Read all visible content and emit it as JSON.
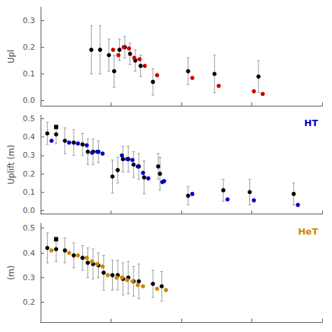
{
  "chart_data": [
    {
      "type": "scatter",
      "ylabel": "Upl",
      "xlim": [
        0,
        16
      ],
      "xticks": [
        0,
        4,
        8,
        12,
        16
      ],
      "ylim": [
        -0.02,
        0.35
      ],
      "yticks": [
        {
          "value": 0,
          "label": "0.0"
        },
        0.1,
        0.2,
        0.3
      ],
      "grid": false,
      "tick_labels": "y",
      "series": [
        {
          "type": "scatter",
          "marker": "circle",
          "color": "black",
          "x": [
            3.0,
            3.5,
            4.0,
            4.3,
            4.6,
            4.9,
            5.2,
            5.5,
            5.8,
            6.5,
            8.5,
            10.0,
            12.5
          ],
          "values": [
            0.19,
            0.19,
            0.17,
            0.11,
            0.19,
            0.2,
            0.175,
            0.15,
            0.13,
            0.07,
            0.11,
            0.1,
            0.09
          ],
          "errors": [
            0.09,
            0.09,
            0.06,
            0.06,
            0.04,
            0.04,
            0.04,
            0.04,
            0.04,
            0.05,
            0.05,
            0.07,
            0.06
          ]
        },
        {
          "type": "scatter",
          "marker": "circle",
          "color": "#cc0000",
          "x": [
            4.0,
            4.3,
            4.6,
            4.9,
            5.2,
            5.5,
            5.8,
            6.5,
            8.5,
            10.0,
            12.0,
            12.5
          ],
          "values": [
            0.19,
            0.17,
            0.2,
            0.195,
            0.16,
            0.155,
            0.13,
            0.095,
            0.085,
            0.055,
            0.035,
            0.025
          ]
        }
      ]
    },
    {
      "type": "scatter",
      "ylabel": "Uplift (m)",
      "xlim": [
        0,
        16
      ],
      "xticks": [
        0,
        4,
        8,
        12,
        16
      ],
      "ylim": [
        -0.02,
        0.52
      ],
      "yticks": [
        {
          "value": 0,
          "label": "0.0"
        },
        0.1,
        0.2,
        0.3,
        0.4,
        0.5
      ],
      "grid": false,
      "tick_labels": "y",
      "annotations": [
        {
          "text": "HT",
          "color": "#0000cc"
        }
      ],
      "series": [
        {
          "type": "scatter",
          "marker": "circle",
          "color": "black",
          "x": [
            0.5,
            1.0,
            1.5,
            2.0,
            2.5,
            2.8,
            3.1,
            3.4,
            4.2,
            4.5,
            4.8,
            5.1,
            5.4,
            5.7,
            6.0,
            6.8,
            6.9,
            8.5,
            10.5,
            12.0,
            14.5
          ],
          "values": [
            0.42,
            0.415,
            0.38,
            0.37,
            0.36,
            0.32,
            0.32,
            0.32,
            0.185,
            0.22,
            0.28,
            0.28,
            0.25,
            0.24,
            0.18,
            0.24,
            0.2,
            0.08,
            0.11,
            0.1,
            0.09
          ],
          "errors": [
            0.06,
            0.05,
            0.07,
            0.07,
            0.06,
            0.07,
            0.07,
            0.06,
            0.09,
            0.07,
            0.07,
            0.07,
            0.07,
            0.07,
            0.09,
            0.07,
            0.09,
            0.05,
            0.06,
            0.07,
            0.06
          ]
        },
        {
          "type": "scatter",
          "marker": "circle",
          "color": "#0000cc",
          "x": [
            0.5,
            1.5,
            2.0,
            2.5,
            2.8,
            3.1,
            3.4,
            4.5,
            4.8,
            5.1,
            5.4,
            5.7,
            6.0,
            6.8,
            6.9,
            8.5,
            10.5,
            12.0,
            14.5
          ],
          "values": [
            0.38,
            0.37,
            0.365,
            0.355,
            0.315,
            0.32,
            0.31,
            0.3,
            0.28,
            0.275,
            0.24,
            0.205,
            0.175,
            0.155,
            0.16,
            0.09,
            0.06,
            0.055,
            0.03
          ]
        },
        {
          "type": "scatter",
          "marker": "square",
          "color": "black",
          "x": [
            1.0
          ],
          "values": [
            0.455
          ]
        }
      ]
    },
    {
      "type": "scatter",
      "ylabel": "(m)",
      "xlim": [
        0,
        16
      ],
      "xticks": [
        0,
        4,
        8,
        12,
        16
      ],
      "ylim": [
        0.12,
        0.52
      ],
      "yticks": [
        0.2,
        0.3,
        0.4,
        0.5
      ],
      "grid": false,
      "tick_labels": "y",
      "annotations": [
        {
          "text": "HeT",
          "color": "#cc8800"
        }
      ],
      "series": [
        {
          "type": "scatter",
          "marker": "circle",
          "color": "black",
          "x": [
            0.5,
            1.0,
            1.5,
            2.0,
            2.5,
            2.8,
            3.1,
            3.4,
            3.7,
            4.2,
            4.5,
            4.8,
            5.1,
            5.4,
            5.7,
            6.5,
            7.0
          ],
          "values": [
            0.42,
            0.415,
            0.41,
            0.39,
            0.38,
            0.36,
            0.355,
            0.35,
            0.32,
            0.31,
            0.31,
            0.295,
            0.3,
            0.285,
            0.285,
            0.275,
            0.265
          ],
          "errors": [
            0.06,
            0.05,
            0.05,
            0.05,
            0.05,
            0.06,
            0.06,
            0.05,
            0.07,
            0.06,
            0.06,
            0.065,
            0.065,
            0.06,
            0.07,
            0.055,
            0.06
          ]
        },
        {
          "type": "scatter",
          "marker": "circle",
          "color": "#cc8800",
          "x": [
            0.5,
            1.5,
            2.0,
            2.5,
            2.8,
            3.1,
            3.4,
            3.7,
            4.2,
            4.5,
            4.8,
            5.1,
            5.4,
            5.7,
            6.5,
            7.0
          ],
          "values": [
            0.41,
            0.4,
            0.39,
            0.38,
            0.365,
            0.355,
            0.345,
            0.31,
            0.3,
            0.3,
            0.29,
            0.285,
            0.27,
            0.265,
            0.255,
            0.25
          ]
        },
        {
          "type": "scatter",
          "marker": "square",
          "color": "black",
          "x": [
            1.0
          ],
          "values": [
            0.455
          ]
        }
      ]
    }
  ]
}
